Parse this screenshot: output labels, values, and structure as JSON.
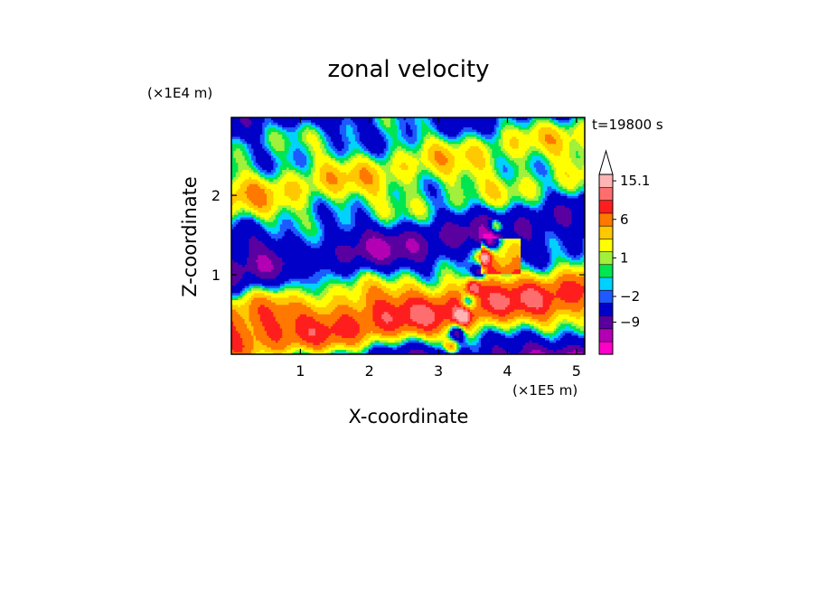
{
  "chart_data": {
    "type": "heatmap",
    "title": "zonal velocity",
    "xlabel": "X-coordinate",
    "ylabel": "Z-coordinate",
    "x_unit": "(×1E5 m)",
    "y_unit": "(×1E4 m)",
    "time_label": "t=19800 s",
    "x_ticks": [
      "1",
      "2",
      "3",
      "4",
      "5"
    ],
    "x_tick_values": [
      1,
      2,
      3,
      4,
      5
    ],
    "y_ticks": [
      "1",
      "2"
    ],
    "y_tick_values": [
      1,
      2
    ],
    "xlim": [
      0,
      5.12
    ],
    "ylim": [
      0,
      2.98
    ],
    "colorbar": {
      "levels": [
        -16,
        -12,
        -9,
        -6,
        -2,
        -1,
        0,
        1,
        2,
        4,
        6,
        9,
        12,
        15.1
      ],
      "colors": [
        "#ff00c8",
        "#b400b4",
        "#5a00a0",
        "#0000c8",
        "#1e5aff",
        "#00d2ff",
        "#00e650",
        "#a0f03c",
        "#ffff00",
        "#ffc800",
        "#ff7800",
        "#ff1e1e",
        "#ff6e6e",
        "#ffb4b4"
      ],
      "extend": "max",
      "tick_labels": [
        "15.1",
        "6",
        "1",
        "−2",
        "−9"
      ],
      "tick_values": [
        15.1,
        6,
        1,
        -2,
        -9
      ]
    },
    "grid": false,
    "legend": "colorbar-right"
  }
}
